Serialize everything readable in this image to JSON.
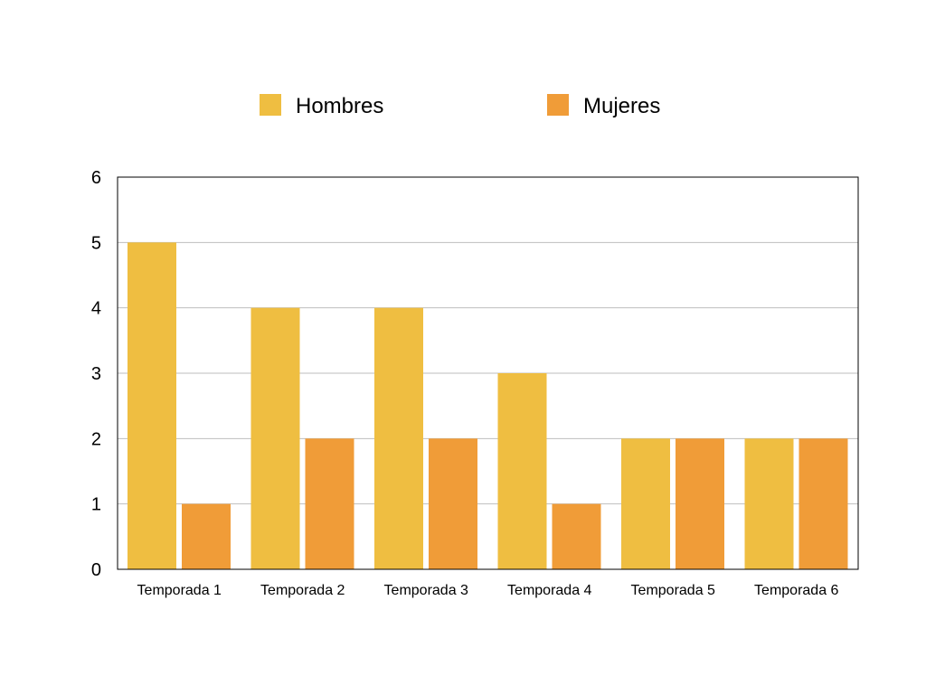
{
  "chart_data": {
    "type": "bar",
    "categories": [
      "Temporada 1",
      "Temporada 2",
      "Temporada 3",
      "Temporada 4",
      "Temporada 5",
      "Temporada 6"
    ],
    "series": [
      {
        "name": "Hombres",
        "values": [
          5,
          4,
          4,
          3,
          2,
          2
        ],
        "color": "#EFBE41"
      },
      {
        "name": "Mujeres",
        "values": [
          1,
          2,
          2,
          1,
          2,
          2
        ],
        "color": "#F09C38"
      }
    ],
    "yticks": [
      "0",
      "1",
      "2",
      "3",
      "4",
      "5",
      "6"
    ],
    "ylim": [
      0,
      6
    ],
    "grid": true,
    "legend_position": "top"
  }
}
